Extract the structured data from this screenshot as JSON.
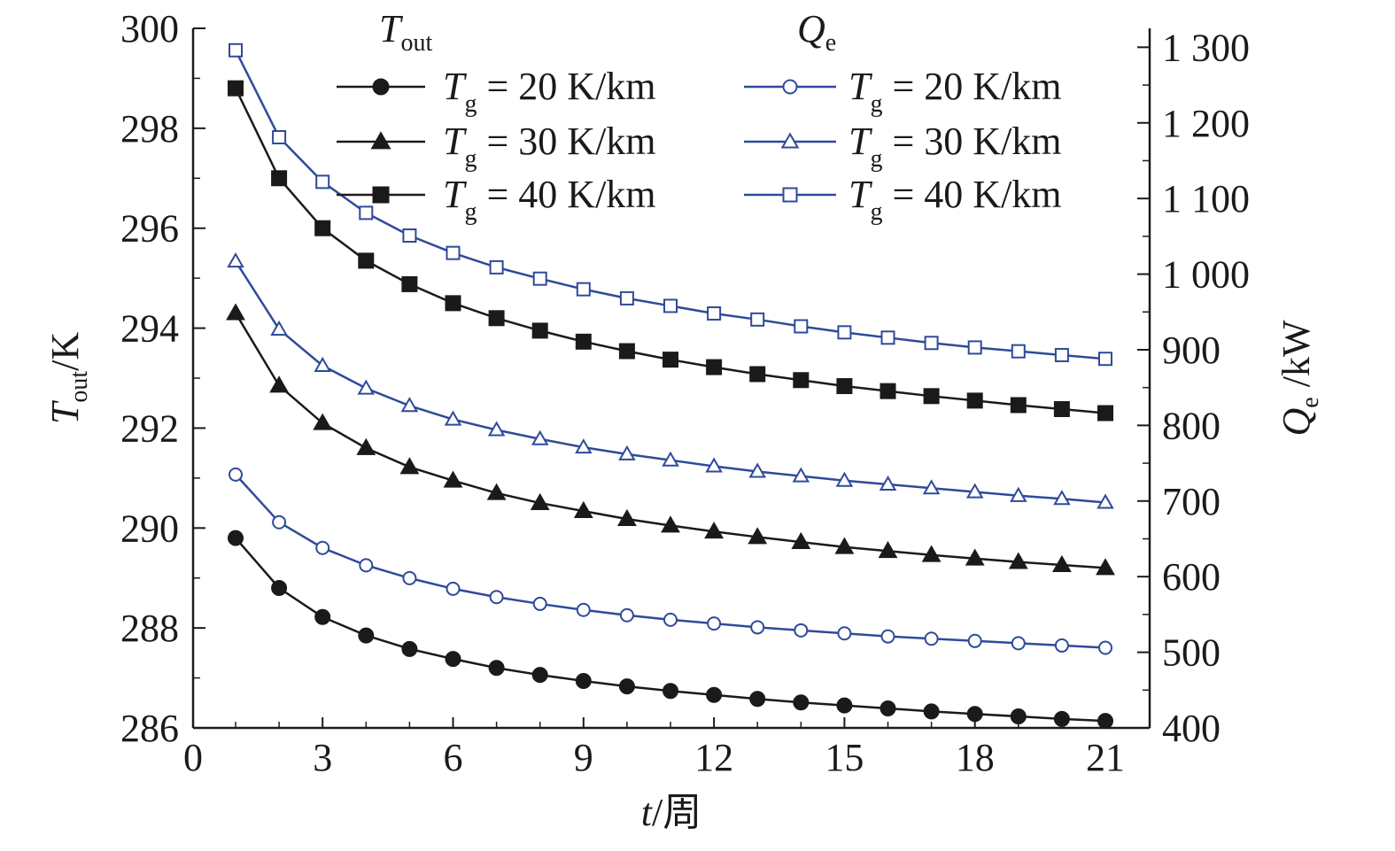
{
  "chart_data": {
    "type": "line",
    "x": [
      1,
      2,
      3,
      4,
      5,
      6,
      7,
      8,
      9,
      10,
      11,
      12,
      13,
      14,
      15,
      16,
      17,
      18,
      19,
      20,
      21
    ],
    "xlim": [
      0,
      21
    ],
    "xticks": [
      0,
      3,
      6,
      9,
      12,
      15,
      18,
      21
    ],
    "xlabel": {
      "var": "t",
      "unit": "/周"
    },
    "y_left": {
      "label": {
        "var": "T",
        "sub": "out",
        "unit": "/K"
      },
      "ylim": [
        286,
        300
      ],
      "ticks": [
        286,
        288,
        290,
        292,
        294,
        296,
        298,
        300
      ]
    },
    "y_right": {
      "label": {
        "var": "Q",
        "sub": "e",
        "unit": " /kW"
      },
      "ylim": [
        400,
        1325
      ],
      "ticks": [
        400,
        500,
        600,
        700,
        800,
        900,
        1000,
        1100,
        1200,
        1300
      ],
      "tick_labels": [
        "400",
        "500",
        "600",
        "700",
        "800",
        "900",
        "1 000",
        "1 100",
        "1 200",
        "1 300"
      ]
    },
    "legend": {
      "placement": "top",
      "group_titles": [
        {
          "var": "T",
          "sub": "out"
        },
        {
          "var": "Q",
          "sub": "e"
        }
      ]
    },
    "series": [
      {
        "name": "Tg = 20 K/km",
        "var": "T",
        "sub": "g",
        "text": " = 20 K/km",
        "axis": "left",
        "color": "#1a1a1a",
        "marker": "circle",
        "filled": true,
        "values": [
          289.8,
          288.8,
          288.22,
          287.85,
          287.58,
          287.38,
          287.2,
          287.06,
          286.94,
          286.83,
          286.74,
          286.66,
          286.58,
          286.51,
          286.45,
          286.39,
          286.33,
          286.28,
          286.23,
          286.18,
          286.14
        ]
      },
      {
        "name": "Tg = 30 K/km",
        "var": "T",
        "sub": "g",
        "text": " = 30 K/km",
        "axis": "left",
        "color": "#1a1a1a",
        "marker": "triangle",
        "filled": true,
        "values": [
          294.3,
          292.85,
          292.1,
          291.6,
          291.22,
          290.95,
          290.7,
          290.5,
          290.34,
          290.18,
          290.05,
          289.93,
          289.82,
          289.72,
          289.62,
          289.54,
          289.46,
          289.39,
          289.32,
          289.26,
          289.2
        ]
      },
      {
        "name": "Tg = 40 K/km",
        "var": "T",
        "sub": "g",
        "text": " = 40 K/km",
        "axis": "left",
        "color": "#1a1a1a",
        "marker": "square",
        "filled": true,
        "values": [
          298.8,
          297.0,
          296.0,
          295.35,
          294.88,
          294.5,
          294.2,
          293.95,
          293.73,
          293.54,
          293.37,
          293.22,
          293.08,
          292.96,
          292.84,
          292.74,
          292.64,
          292.55,
          292.46,
          292.38,
          292.3
        ]
      },
      {
        "name": "Tg = 20 K/km",
        "var": "T",
        "sub": "g",
        "text": " = 20 K/km",
        "axis": "right",
        "color": "#2f4a9a",
        "marker": "circle",
        "filled": false,
        "values": [
          735,
          672,
          638,
          615,
          598,
          584,
          573,
          564,
          556,
          549,
          543,
          538,
          533,
          529,
          525,
          521,
          518,
          515,
          512,
          509,
          506
        ]
      },
      {
        "name": "Tg = 30 K/km",
        "var": "T",
        "sub": "g",
        "text": " = 30 K/km",
        "axis": "right",
        "color": "#2f4a9a",
        "marker": "triangle",
        "filled": false,
        "values": [
          1017,
          927,
          879,
          849,
          826,
          808,
          794,
          782,
          771,
          762,
          754,
          746,
          739,
          733,
          727,
          722,
          717,
          712,
          707,
          703,
          698
        ]
      },
      {
        "name": "Tg = 40 K/km",
        "var": "T",
        "sub": "g",
        "text": " = 40 K/km",
        "axis": "right",
        "color": "#2f4a9a",
        "marker": "square",
        "filled": false,
        "values": [
          1296,
          1181,
          1122,
          1081,
          1051,
          1028,
          1009,
          994,
          980,
          968,
          958,
          948,
          940,
          931,
          923,
          916,
          909,
          903,
          898,
          893,
          888
        ]
      }
    ]
  }
}
